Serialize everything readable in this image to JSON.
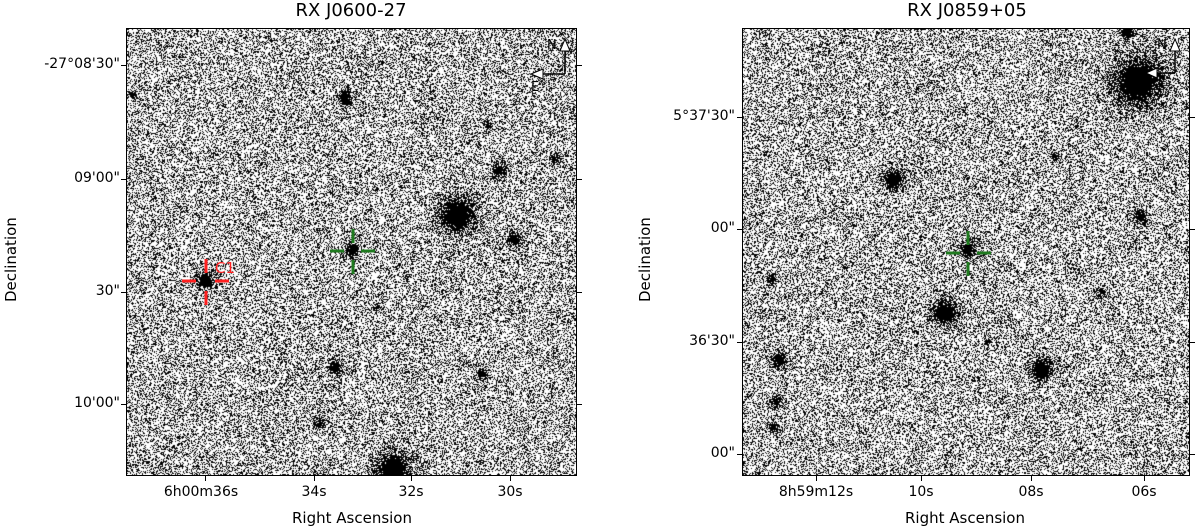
{
  "panels": [
    {
      "title": "RX J0600-27",
      "ylabel": "Declination",
      "xlabel": "Right Ascension",
      "yticks": [
        "-27°08'30\"",
        "09'00\"",
        "30\"",
        "10'00\""
      ],
      "xticks": [
        "6h00m36s",
        "34s",
        "32s",
        "30s"
      ],
      "compass": {
        "north": "N",
        "east": "E"
      },
      "markers": [
        {
          "color": "#ff2020",
          "label": "C1"
        },
        {
          "color": "#1f7a1f",
          "label": ""
        }
      ]
    },
    {
      "title": "RX J0859+05",
      "ylabel": "Declination",
      "xlabel": "Right Ascension",
      "yticks": [
        "5°37'30\"",
        "00\"",
        "36'30\"",
        "00\""
      ],
      "xticks": [
        "8h59m12s",
        "10s",
        "08s",
        "06s"
      ],
      "compass": {
        "north": "N",
        "east": ""
      },
      "markers": [
        {
          "color": "#1f7a1f",
          "label": ""
        }
      ]
    }
  ]
}
